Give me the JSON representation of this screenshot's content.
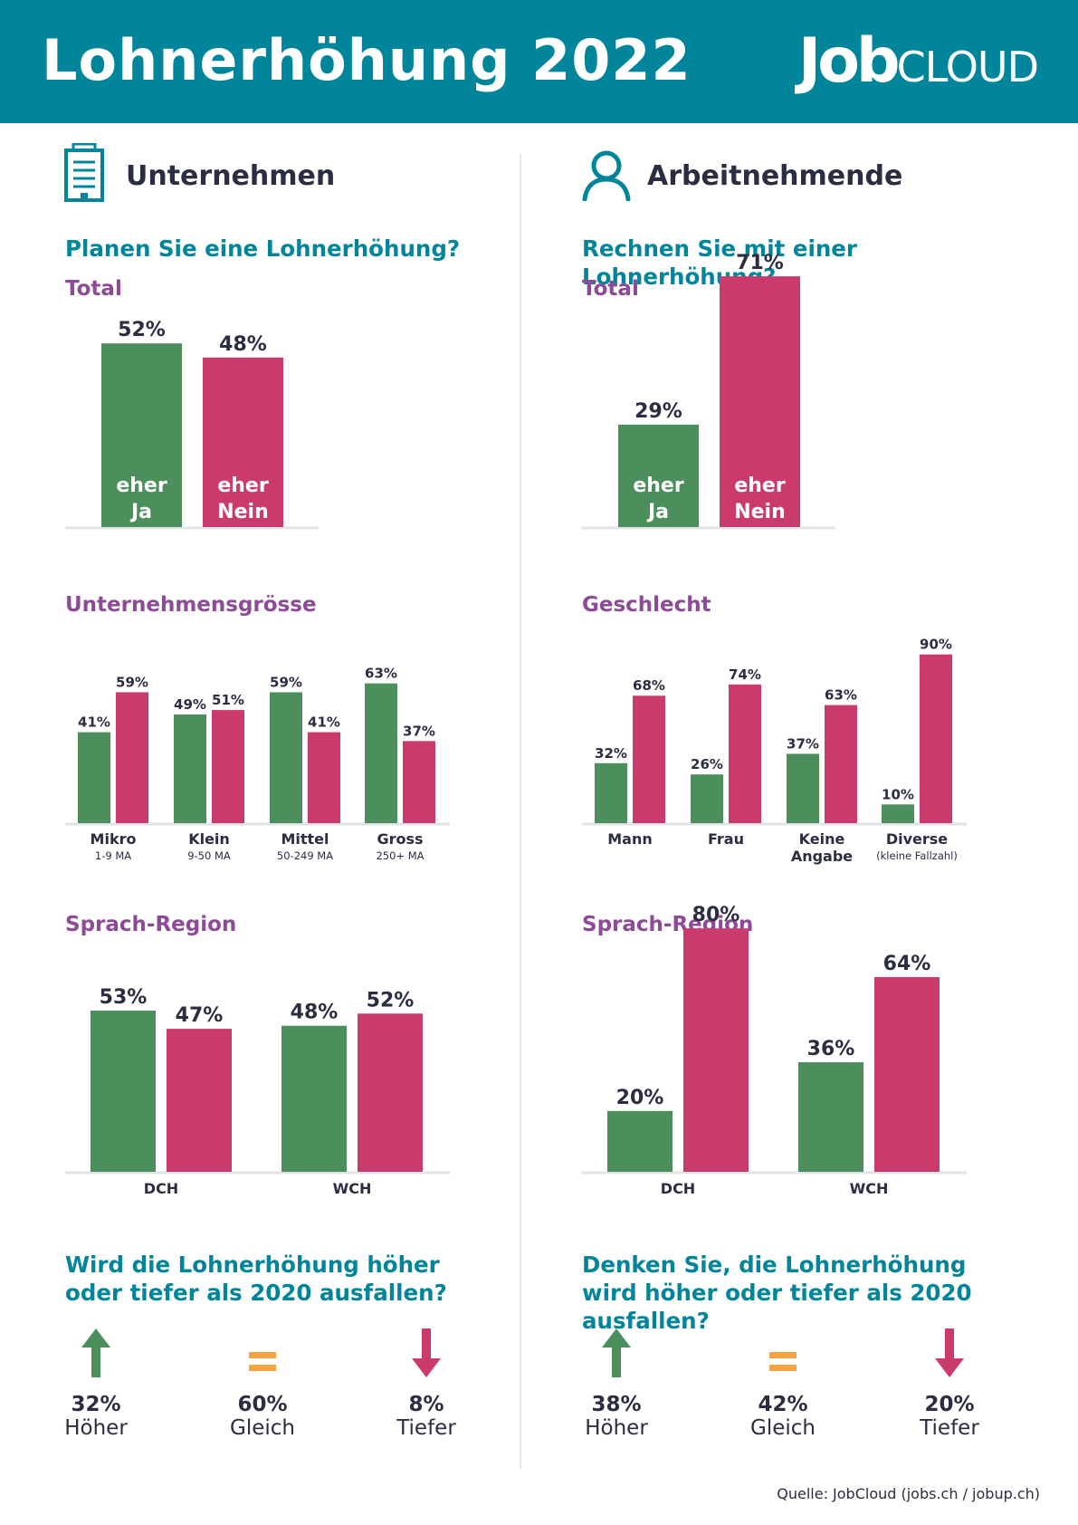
{
  "header": {
    "title": "Lohnerhöhung 2022",
    "logo_job": "Job",
    "logo_cloud": "CLOUD"
  },
  "colors": {
    "yes": "#4c8f5c",
    "no": "#cb3a6c",
    "teal": "#00859b",
    "purple": "#8e4a98",
    "equal": "#f5a243"
  },
  "left": {
    "section_title": "Unternehmen",
    "section_icon": "building-icon",
    "question": "Planen Sie eine Lohnerhöhung?",
    "total_heading": "Total",
    "group_heading": "Unternehmensgrösse",
    "region_heading": "Sprach-Region",
    "change_question": "Wird die Lohnerhöhung höher oder tiefer als 2020 ausfallen?",
    "change": [
      {
        "icon": "arrow-up-icon",
        "pct": "32%",
        "label": "Höher"
      },
      {
        "icon": "equals-icon",
        "pct": "60%",
        "label": "Gleich"
      },
      {
        "icon": "arrow-down-icon",
        "pct": "8%",
        "label": "Tiefer"
      }
    ]
  },
  "right": {
    "section_title": "Arbeitnehmende",
    "section_icon": "person-icon",
    "question": "Rechnen Sie mit einer Lohnerhöhung?",
    "total_heading": "Total",
    "group_heading": "Geschlecht",
    "region_heading": "Sprach-Region",
    "change_question": "Denken Sie, die Lohnerhöhung wird höher oder tiefer als 2020 ausfallen?",
    "change": [
      {
        "icon": "arrow-up-icon",
        "pct": "38%",
        "label": "Höher"
      },
      {
        "icon": "equals-icon",
        "pct": "42%",
        "label": "Gleich"
      },
      {
        "icon": "arrow-down-icon",
        "pct": "20%",
        "label": "Tiefer"
      }
    ]
  },
  "chart_data": [
    {
      "id": "left_total",
      "type": "bar",
      "categories": [
        "eher Ja",
        "eher Nein"
      ],
      "values": [
        52,
        48
      ],
      "labels": [
        "52%",
        "48%"
      ],
      "unit": "%"
    },
    {
      "id": "left_size",
      "type": "bar",
      "categories": [
        "Mikro",
        "Klein",
        "Mittel",
        "Gross"
      ],
      "sublabels": [
        "1-9 MA",
        "9-50 MA",
        "50-249 MA",
        "250+ MA"
      ],
      "series": [
        {
          "name": "eher Ja",
          "values": [
            41,
            49,
            59,
            63
          ],
          "labels": [
            "41%",
            "49%",
            "59%",
            "63%"
          ]
        },
        {
          "name": "eher Nein",
          "values": [
            59,
            51,
            41,
            37
          ],
          "labels": [
            "59%",
            "51%",
            "41%",
            "37%"
          ]
        }
      ],
      "unit": "%"
    },
    {
      "id": "left_region",
      "type": "bar",
      "categories": [
        "DCH",
        "WCH"
      ],
      "series": [
        {
          "name": "eher Ja",
          "values": [
            53,
            48
          ],
          "labels": [
            "53%",
            "48%"
          ]
        },
        {
          "name": "eher Nein",
          "values": [
            47,
            52
          ],
          "labels": [
            "47%",
            "52%"
          ]
        }
      ],
      "unit": "%"
    },
    {
      "id": "right_total",
      "type": "bar",
      "categories": [
        "eher Ja",
        "eher Nein"
      ],
      "values": [
        29,
        71
      ],
      "labels": [
        "29%",
        "71%"
      ],
      "unit": "%"
    },
    {
      "id": "right_gender",
      "type": "bar",
      "categories": [
        "Mann",
        "Frau",
        "Keine Angabe",
        "Diverse"
      ],
      "sublabels": [
        "",
        "",
        "",
        "(kleine Fallzahl)"
      ],
      "series": [
        {
          "name": "eher Ja",
          "values": [
            32,
            26,
            37,
            10
          ],
          "labels": [
            "32%",
            "26%",
            "37%",
            "10%"
          ]
        },
        {
          "name": "eher Nein",
          "values": [
            68,
            74,
            63,
            90
          ],
          "labels": [
            "68%",
            "74%",
            "63%",
            "90%"
          ]
        }
      ],
      "unit": "%"
    },
    {
      "id": "right_region",
      "type": "bar",
      "categories": [
        "DCH",
        "WCH"
      ],
      "series": [
        {
          "name": "eher Ja",
          "values": [
            20,
            36
          ],
          "labels": [
            "20%",
            "36%"
          ]
        },
        {
          "name": "eher Nein",
          "values": [
            80,
            64
          ],
          "labels": [
            "80%",
            "64%"
          ]
        }
      ],
      "unit": "%"
    }
  ],
  "footer": {
    "source": "Quelle: JobCloud (jobs.ch / jobup.ch)"
  }
}
